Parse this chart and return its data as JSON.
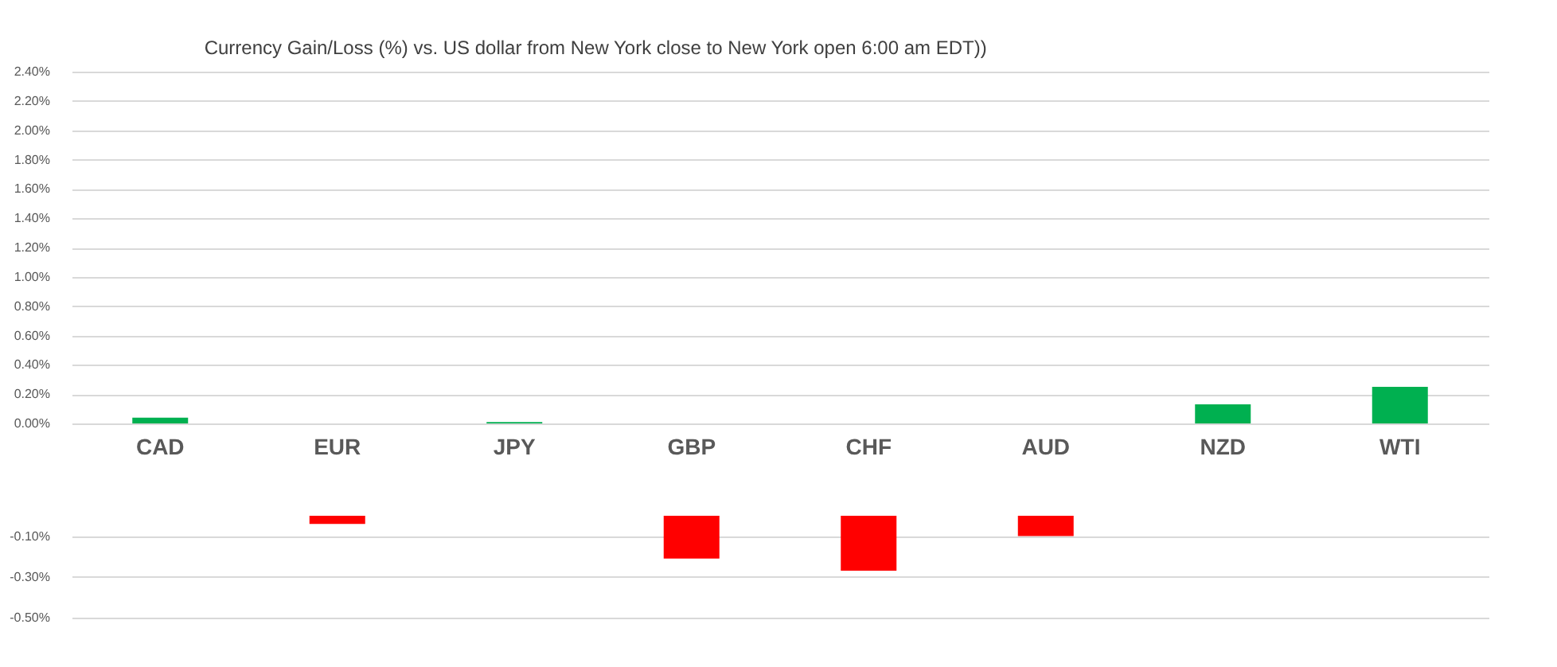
{
  "chart_data": [
    {
      "type": "bar",
      "title": "Currency  Gain/Loss (%) vs. US dollar  from New York  close to  New York open 6:00 am EDT))",
      "categories": [
        "CAD",
        "EUR",
        "JPY",
        "GBP",
        "CHF",
        "AUD",
        "NZD",
        "WTI"
      ],
      "series": [
        {
          "color": "#00b050",
          "values": [
            0.04,
            null,
            0.01,
            null,
            null,
            null,
            0.13,
            0.25
          ]
        }
      ],
      "ylim": [
        0,
        2.4
      ],
      "yticks": [
        {
          "value": 0,
          "label": "0.00%"
        },
        {
          "value": 0.2,
          "label": "0.20%"
        },
        {
          "value": 0.4,
          "label": "0.40%"
        },
        {
          "value": 0.6,
          "label": "0.60%"
        },
        {
          "value": 0.8,
          "label": "0.80%"
        },
        {
          "value": 1.0,
          "label": "1.00%"
        },
        {
          "value": 1.2,
          "label": "1.20%"
        },
        {
          "value": 1.4,
          "label": "1.40%"
        },
        {
          "value": 1.6,
          "label": "1.60%"
        },
        {
          "value": 1.8,
          "label": "1.80%"
        },
        {
          "value": 2.0,
          "label": "2.00%"
        },
        {
          "value": 2.2,
          "label": "2.20%"
        },
        {
          "value": 2.4,
          "label": "2.40%"
        }
      ],
      "grid": "y"
    },
    {
      "type": "bar",
      "categories": [
        null,
        null,
        null,
        null,
        null,
        null,
        null,
        null
      ],
      "series": [
        {
          "color": "#ff0000",
          "values": [
            null,
            -0.04,
            null,
            -0.21,
            -0.27,
            -0.1,
            null,
            null
          ]
        }
      ],
      "ylim": [
        -0.5,
        0
      ],
      "yticks": [
        {
          "value": -0.1,
          "label": "-0.10%"
        },
        {
          "value": -0.3,
          "label": "-0.30%"
        },
        {
          "value": -0.5,
          "label": "-0.50%"
        }
      ],
      "grid": "y",
      "tick_labels": "y"
    }
  ]
}
